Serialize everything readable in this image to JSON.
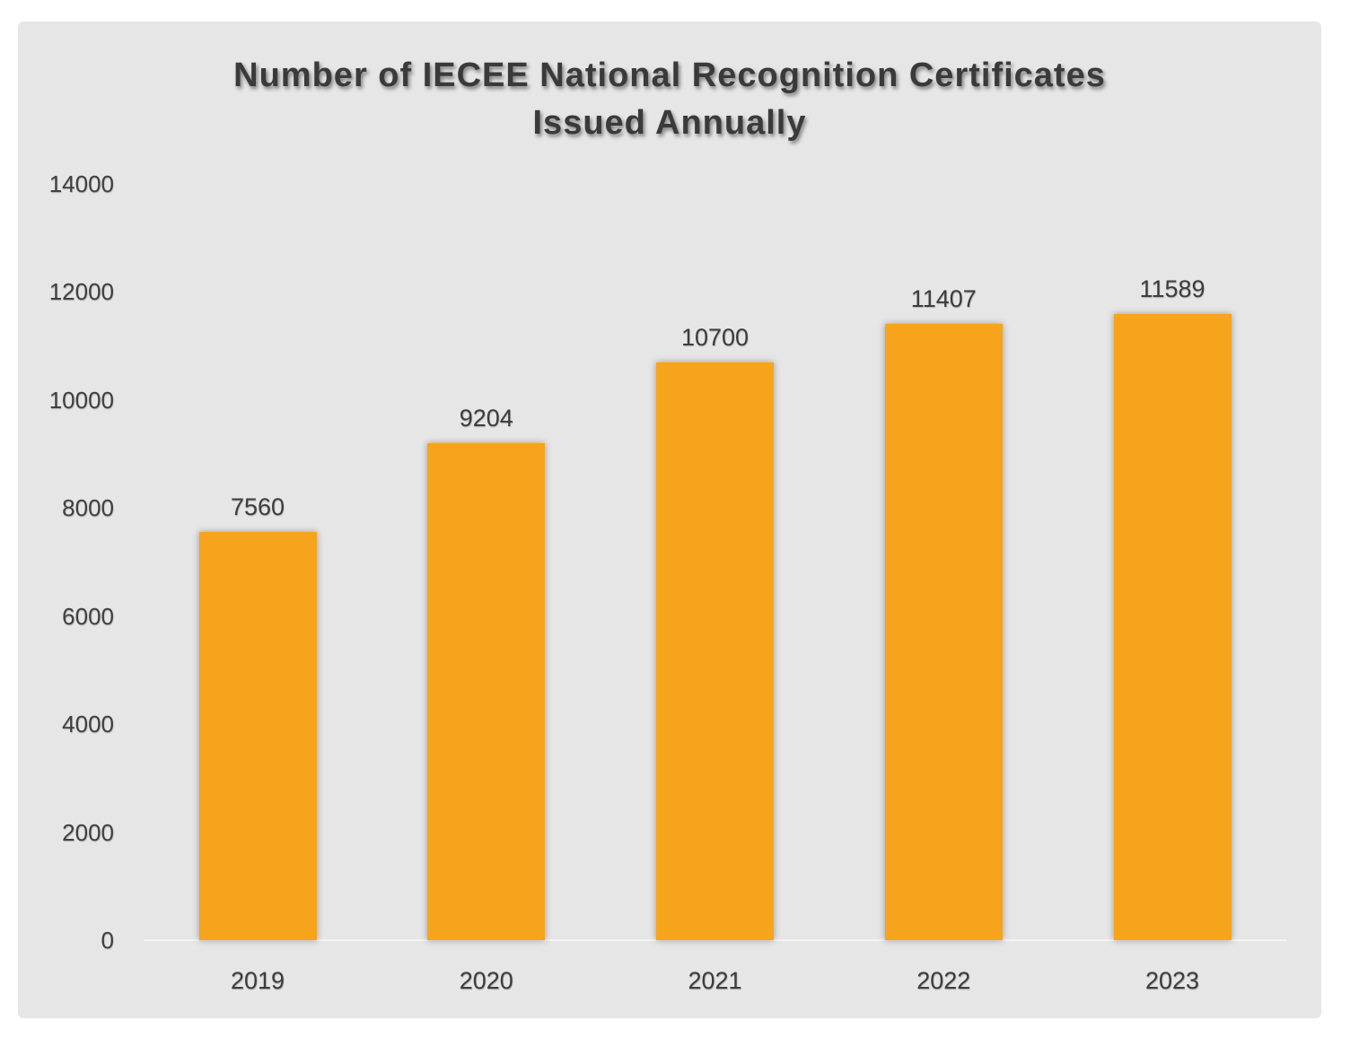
{
  "chart_data": {
    "type": "bar",
    "title": "Number of IECEE National Recognition Certificates Issued Annually",
    "title_lines": [
      "Number of IECEE National Recognition Certificates",
      "Issued Annually"
    ],
    "categories": [
      "2019",
      "2020",
      "2021",
      "2022",
      "2023"
    ],
    "values": [
      7560,
      9204,
      10700,
      11407,
      11589
    ],
    "data_labels": [
      "7560",
      "9204",
      "10700",
      "11407",
      "11589"
    ],
    "xlabel": "",
    "ylabel": "",
    "ylim": [
      0,
      14000
    ],
    "ytick_step": 2000,
    "yticks": [
      0,
      2000,
      4000,
      6000,
      8000,
      10000,
      12000,
      14000
    ],
    "grid": false,
    "legend": false,
    "bar_color": "#F7A41D",
    "panel_background_color": "#E6E6E6",
    "page_background_color": "#FFFFFF",
    "text_color": "#3D3D3D",
    "title_color": "#3A3A3A"
  }
}
